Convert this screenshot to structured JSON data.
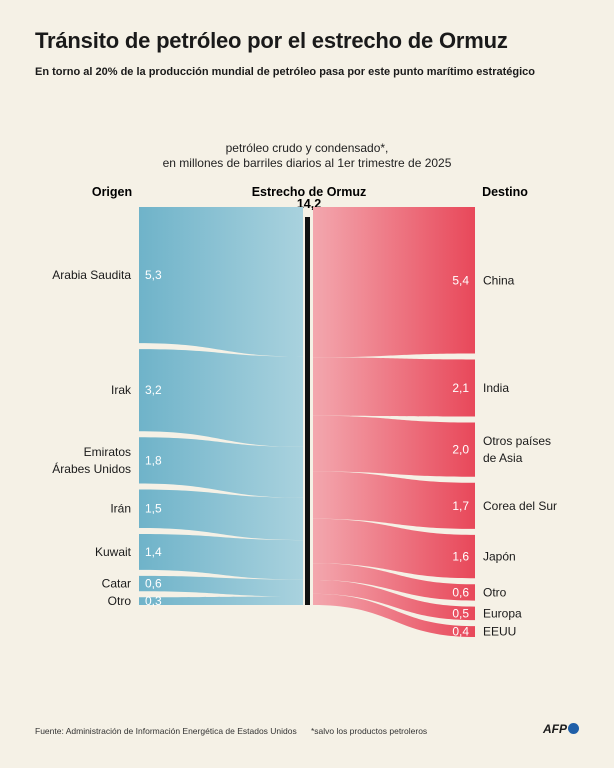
{
  "header": {
    "title": "Tránsito de petróleo por el estrecho de Ormuz",
    "subtitle": "En torno al 20% de la producción mundial de petróleo pasa por este punto marítimo estratégico"
  },
  "chart_data": {
    "type": "sankey",
    "note_lines": [
      "petróleo crudo y condensado*,",
      "en millones de barriles diarios al 1er trimestre de 2025"
    ],
    "origin_header": "Origen",
    "center_header": "Estrecho de Ormuz",
    "center_total": "14,2",
    "destination_header": "Destino",
    "origins": [
      {
        "name": [
          "Arabia Saudita"
        ],
        "value": 5.3,
        "label": "5,3"
      },
      {
        "name": [
          "Irak"
        ],
        "value": 3.2,
        "label": "3,2"
      },
      {
        "name": [
          "Emiratos",
          "Árabes Unidos"
        ],
        "value": 1.8,
        "label": "1,8"
      },
      {
        "name": [
          "Irán"
        ],
        "value": 1.5,
        "label": "1,5"
      },
      {
        "name": [
          "Kuwait"
        ],
        "value": 1.4,
        "label": "1,4"
      },
      {
        "name": [
          "Catar"
        ],
        "value": 0.6,
        "label": "0,6"
      },
      {
        "name": [
          "Otro"
        ],
        "value": 0.3,
        "label": "0,3"
      }
    ],
    "destinations": [
      {
        "name": [
          "China"
        ],
        "value": 5.4,
        "label": "5,4"
      },
      {
        "name": [
          "India"
        ],
        "value": 2.1,
        "label": "2,1"
      },
      {
        "name": [
          "Otros países",
          "de Asia"
        ],
        "value": 2.0,
        "label": "2,0"
      },
      {
        "name": [
          "Corea del Sur"
        ],
        "value": 1.7,
        "label": "1,7"
      },
      {
        "name": [
          "Japón"
        ],
        "value": 1.6,
        "label": "1,6"
      },
      {
        "name": [
          "Otro"
        ],
        "value": 0.6,
        "label": "0,6"
      },
      {
        "name": [
          "Europa"
        ],
        "value": 0.5,
        "label": "0,5"
      },
      {
        "name": [
          "EEUU"
        ],
        "value": 0.4,
        "label": "0,4"
      }
    ],
    "colors": {
      "origin_dark": "#6fb3c9",
      "origin_light": "#a9d2de",
      "destination_dark": "#e8485a",
      "destination_light": "#f3a7ae",
      "strait_bar": "#111111"
    }
  },
  "footer": {
    "source": "Fuente: Administración de Información Energética de Estados Unidos",
    "note": "*salvo los productos petroleros",
    "logo": "AFP"
  }
}
